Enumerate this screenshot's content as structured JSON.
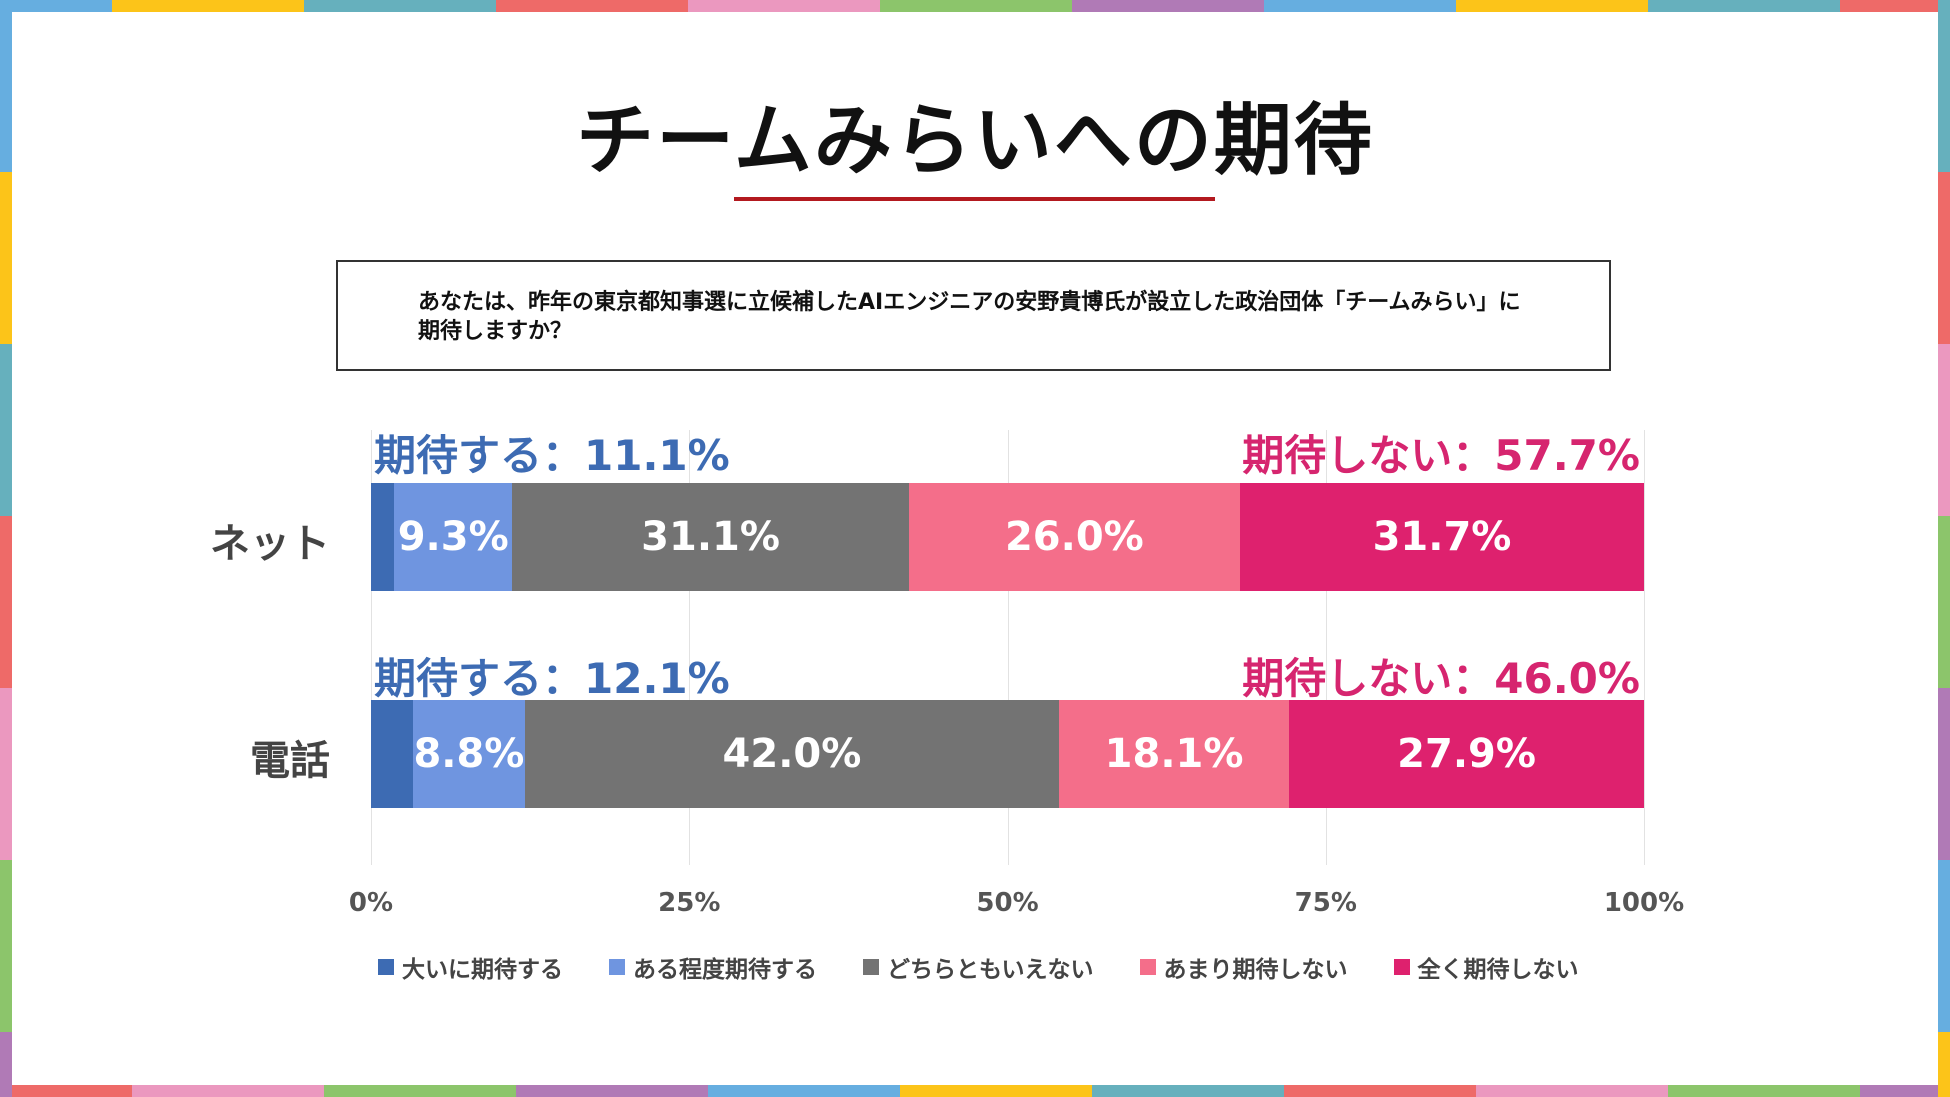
{
  "border_colors": [
    "#66aee0",
    "#fcc419",
    "#66b0bd",
    "#ee6a68",
    "#eb98bf",
    "#8cc56b",
    "#b07ab6"
  ],
  "title": "チームみらいへの期待",
  "question": "あなたは、昨年の東京都知事選に立候補したAIエンジニアの安野貴博氏が設立した政治団体「チームみらい」に期待しますか？",
  "chart_data": {
    "type": "bar",
    "orientation": "horizontal-stacked-100",
    "categories": [
      "ネット",
      "電話"
    ],
    "series": [
      {
        "name": "大いに期待する",
        "color": "#3d6bb3",
        "values": [
          1.8,
          3.3
        ],
        "labels": [
          "",
          ""
        ]
      },
      {
        "name": "ある程度期待する",
        "color": "#6f95e0",
        "values": [
          9.3,
          8.8
        ],
        "labels": [
          "9.3%",
          "8.8%"
        ]
      },
      {
        "name": "どちらともいえない",
        "color": "#737373",
        "values": [
          31.1,
          42.0
        ],
        "labels": [
          "31.1%",
          "42.0%"
        ]
      },
      {
        "name": "あまり期待しない",
        "color": "#f46e8a",
        "values": [
          26.0,
          18.1
        ],
        "labels": [
          "26.0%",
          "18.1%"
        ]
      },
      {
        "name": "全く期待しない",
        "color": "#de216e",
        "values": [
          31.7,
          27.9
        ],
        "labels": [
          "31.7%",
          "27.9%"
        ]
      }
    ],
    "summaries": [
      {
        "positive": "期待する：11.1%",
        "negative": "期待しない：57.7%"
      },
      {
        "positive": "期待する：12.1%",
        "negative": "期待しない：46.0%"
      }
    ],
    "xticks": [
      "0%",
      "25%",
      "50%",
      "75%",
      "100%"
    ],
    "xlim": [
      0,
      100
    ],
    "legend": "bottom",
    "grid": true
  }
}
